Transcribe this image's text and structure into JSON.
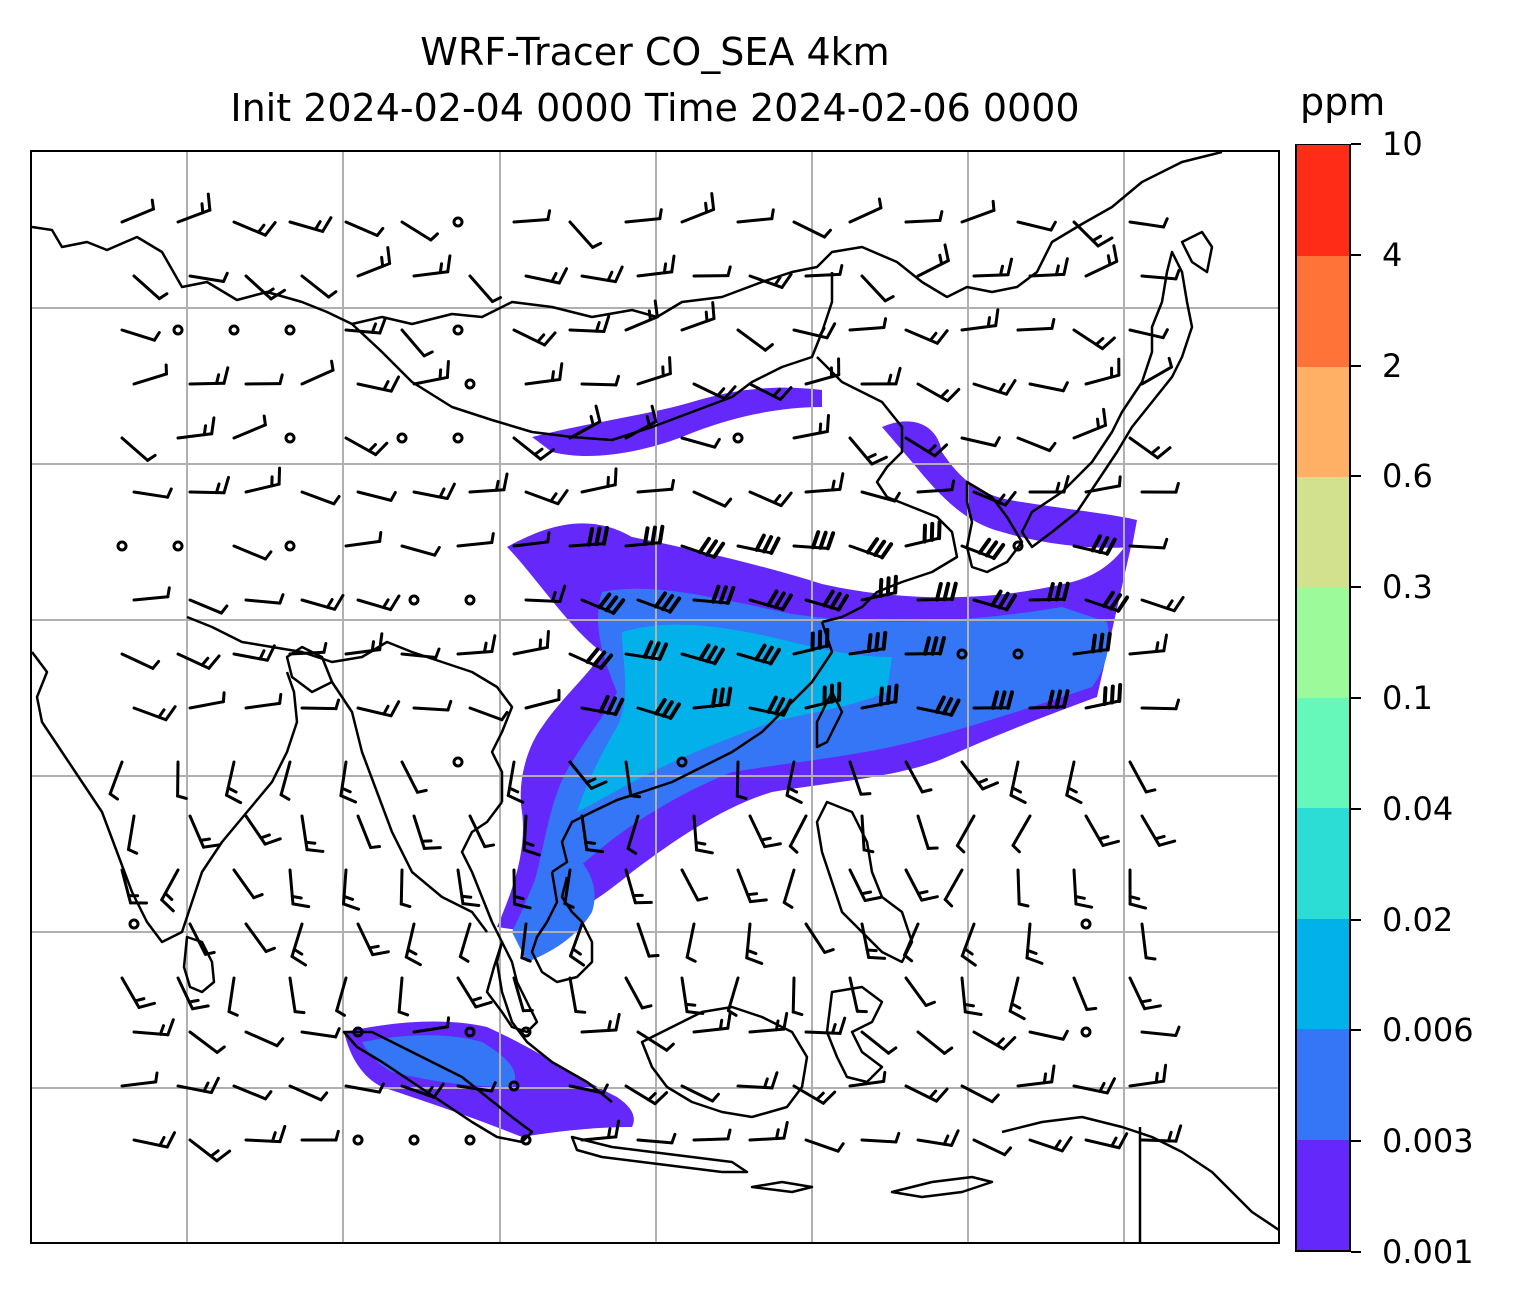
{
  "title": {
    "line1": "WRF-Tracer CO_SEA 4km",
    "line2": "Init 2024-02-04 0000 Time 2024-02-06 0000"
  },
  "colorbar": {
    "unit": "ppm",
    "levels": [
      "0.001",
      "0.003",
      "0.006",
      "0.02",
      "0.04",
      "0.1",
      "0.3",
      "0.6",
      "2",
      "4",
      "10"
    ],
    "colors": [
      "#6528fb",
      "#3476f5",
      "#03b1ea",
      "#2cddd6",
      "#66f8ba",
      "#9cfa9a",
      "#d1e18d",
      "#ffb064",
      "#ff7238",
      "#ff2d18"
    ]
  },
  "map": {
    "gridlines": true,
    "coastline_color": "#000000",
    "wind_barbs": true,
    "plume_color_low": "#6528fb",
    "plume_color_mid": "#3476f5",
    "plume_color_high": "#03b1ea"
  }
}
